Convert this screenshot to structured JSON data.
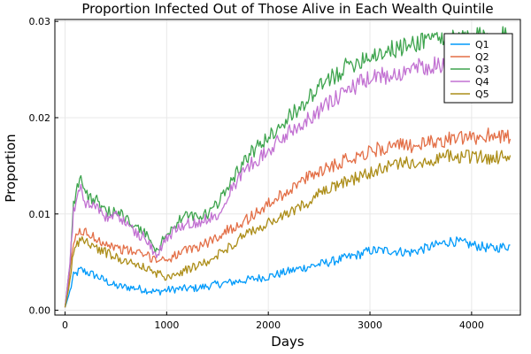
{
  "chart_data": {
    "type": "line",
    "title": "Proportion Infected Out of Those Alive in Each Wealth Quintile",
    "xlabel": "Days",
    "ylabel": "Proportion",
    "xlim": [
      -100,
      4480
    ],
    "ylim": [
      -0.0005,
      0.0302
    ],
    "xticks": [
      0,
      1000,
      2000,
      3000,
      4000
    ],
    "xtick_labels": [
      "0",
      "1000",
      "2000",
      "3000",
      "4000"
    ],
    "yticks": [
      0.0,
      0.01,
      0.02,
      0.03
    ],
    "ytick_labels": [
      "0.00",
      "0.01",
      "0.02",
      "0.03"
    ],
    "grid": true,
    "legend_position": "top-right",
    "series": [
      {
        "name": "Q1",
        "color": "#009afa",
        "x": [
          0,
          50,
          80,
          150,
          300,
          500,
          700,
          900,
          1000,
          1100,
          1300,
          1500,
          1700,
          2000,
          2300,
          2600,
          2900,
          3000,
          3200,
          3400,
          3600,
          3800,
          4000,
          4200,
          4380
        ],
        "y": [
          0.0003,
          0.002,
          0.0035,
          0.0042,
          0.0036,
          0.0025,
          0.0023,
          0.0019,
          0.0021,
          0.0022,
          0.0023,
          0.0027,
          0.003,
          0.0035,
          0.0043,
          0.005,
          0.0058,
          0.0062,
          0.0062,
          0.006,
          0.0066,
          0.0072,
          0.0068,
          0.0064,
          0.0067
        ]
      },
      {
        "name": "Q2",
        "color": "#e36f47",
        "x": [
          0,
          50,
          80,
          150,
          300,
          500,
          700,
          900,
          1000,
          1200,
          1400,
          1600,
          1800,
          2000,
          2200,
          2500,
          2800,
          3000,
          3200,
          3500,
          3800,
          4000,
          4200,
          4380
        ],
        "y": [
          0.0003,
          0.004,
          0.007,
          0.0083,
          0.0075,
          0.0065,
          0.006,
          0.0053,
          0.0053,
          0.0062,
          0.007,
          0.0083,
          0.0095,
          0.011,
          0.0125,
          0.0145,
          0.0158,
          0.0165,
          0.017,
          0.0172,
          0.0178,
          0.0178,
          0.0183,
          0.018
        ]
      },
      {
        "name": "Q3",
        "color": "#3ea44e",
        "x": [
          0,
          50,
          80,
          150,
          200,
          300,
          400,
          500,
          600,
          700,
          800,
          900,
          1000,
          1100,
          1200,
          1300,
          1400,
          1500,
          1600,
          1800,
          2000,
          2200,
          2400,
          2600,
          2800,
          3000,
          3200,
          3400,
          3600,
          3800,
          4000,
          4200,
          4380
        ],
        "y": [
          0.0003,
          0.005,
          0.011,
          0.014,
          0.012,
          0.0115,
          0.01,
          0.0105,
          0.0095,
          0.0085,
          0.008,
          0.006,
          0.008,
          0.009,
          0.01,
          0.0095,
          0.01,
          0.011,
          0.013,
          0.016,
          0.018,
          0.02,
          0.022,
          0.024,
          0.0255,
          0.0265,
          0.027,
          0.0275,
          0.0285,
          0.028,
          0.0285,
          0.0283,
          0.0285
        ]
      },
      {
        "name": "Q4",
        "color": "#c271d2",
        "x": [
          0,
          50,
          80,
          150,
          200,
          300,
          400,
          500,
          600,
          700,
          800,
          900,
          1000,
          1100,
          1200,
          1300,
          1400,
          1500,
          1600,
          1800,
          2000,
          2200,
          2400,
          2600,
          2800,
          3000,
          3200,
          3400,
          3600,
          3800,
          4000,
          4200,
          4380
        ],
        "y": [
          0.0003,
          0.005,
          0.01,
          0.013,
          0.011,
          0.011,
          0.0095,
          0.01,
          0.009,
          0.008,
          0.0075,
          0.0055,
          0.0075,
          0.0085,
          0.009,
          0.009,
          0.0095,
          0.01,
          0.012,
          0.015,
          0.0165,
          0.0185,
          0.02,
          0.0215,
          0.023,
          0.024,
          0.0245,
          0.025,
          0.0255,
          0.0255,
          0.026,
          0.0258,
          0.026
        ]
      },
      {
        "name": "Q5",
        "color": "#ac8d18",
        "x": [
          0,
          50,
          80,
          150,
          300,
          500,
          700,
          900,
          1000,
          1200,
          1400,
          1600,
          1800,
          2000,
          2200,
          2500,
          2800,
          3000,
          3200,
          3500,
          3800,
          4000,
          4200,
          4380
        ],
        "y": [
          0.0003,
          0.003,
          0.006,
          0.0075,
          0.0065,
          0.0055,
          0.0048,
          0.0038,
          0.0035,
          0.0042,
          0.005,
          0.0065,
          0.008,
          0.009,
          0.01,
          0.012,
          0.0135,
          0.0142,
          0.015,
          0.0155,
          0.016,
          0.016,
          0.0158,
          0.016
        ]
      }
    ]
  }
}
